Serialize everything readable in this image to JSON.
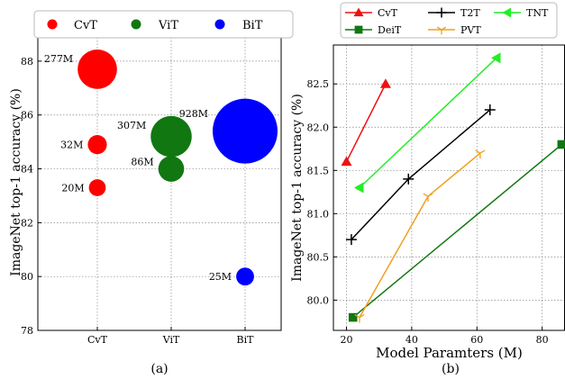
{
  "chart_data": [
    {
      "type": "scatter",
      "caption": "(a)",
      "ylabel": "ImageNet top-1 accuracy (%)",
      "categories": [
        "CvT",
        "ViT",
        "BiT"
      ],
      "ylim": [
        78,
        89
      ],
      "yticks": [
        78,
        80,
        82,
        84,
        86,
        88
      ],
      "grid": true,
      "legend_position": "top",
      "series": [
        {
          "name": "CvT",
          "color": "#ff0000",
          "points": [
            {
              "x": "CvT",
              "y": 87.7,
              "label": "277M"
            },
            {
              "x": "CvT",
              "y": 84.9,
              "label": "32M"
            },
            {
              "x": "CvT",
              "y": 83.3,
              "label": "20M"
            }
          ]
        },
        {
          "name": "ViT",
          "color": "#117711",
          "points": [
            {
              "x": "ViT",
              "y": 85.2,
              "label": "307M"
            },
            {
              "x": "ViT",
              "y": 84.0,
              "label": "86M"
            }
          ]
        },
        {
          "name": "BiT",
          "color": "#0000ff",
          "points": [
            {
              "x": "BiT",
              "y": 85.4,
              "label": "928M"
            },
            {
              "x": "BiT",
              "y": 80.0,
              "label": "25M"
            }
          ]
        }
      ]
    },
    {
      "type": "line",
      "caption": "(b)",
      "xlabel": "Model Paramters (M)",
      "ylabel": "ImageNet top-1 accuracy (%)",
      "xlim": [
        16,
        87
      ],
      "ylim": [
        79.65,
        82.95
      ],
      "xticks": [
        20,
        40,
        60,
        80
      ],
      "yticks": [
        80.0,
        80.5,
        81.0,
        81.5,
        82.0,
        82.5
      ],
      "grid": true,
      "legend_position": "top",
      "series": [
        {
          "name": "CvT",
          "color": "#ee1111",
          "marker": "triangle-up",
          "x": [
            20,
            32
          ],
          "y": [
            81.6,
            82.5
          ]
        },
        {
          "name": "DeiT",
          "color": "#117711",
          "marker": "square",
          "x": [
            22,
            86
          ],
          "y": [
            79.8,
            81.8
          ]
        },
        {
          "name": "T2T",
          "color": "#000000",
          "marker": "plus",
          "x": [
            21.5,
            39,
            64
          ],
          "y": [
            80.7,
            81.4,
            82.2
          ]
        },
        {
          "name": "PVT",
          "color": "#f0a020",
          "marker": "tri-down",
          "x": [
            24,
            45,
            61
          ],
          "y": [
            79.8,
            81.2,
            81.7
          ]
        },
        {
          "name": "TNT",
          "color": "#22ee22",
          "marker": "triangle-left",
          "x": [
            24,
            66
          ],
          "y": [
            81.3,
            82.8
          ]
        }
      ]
    }
  ]
}
